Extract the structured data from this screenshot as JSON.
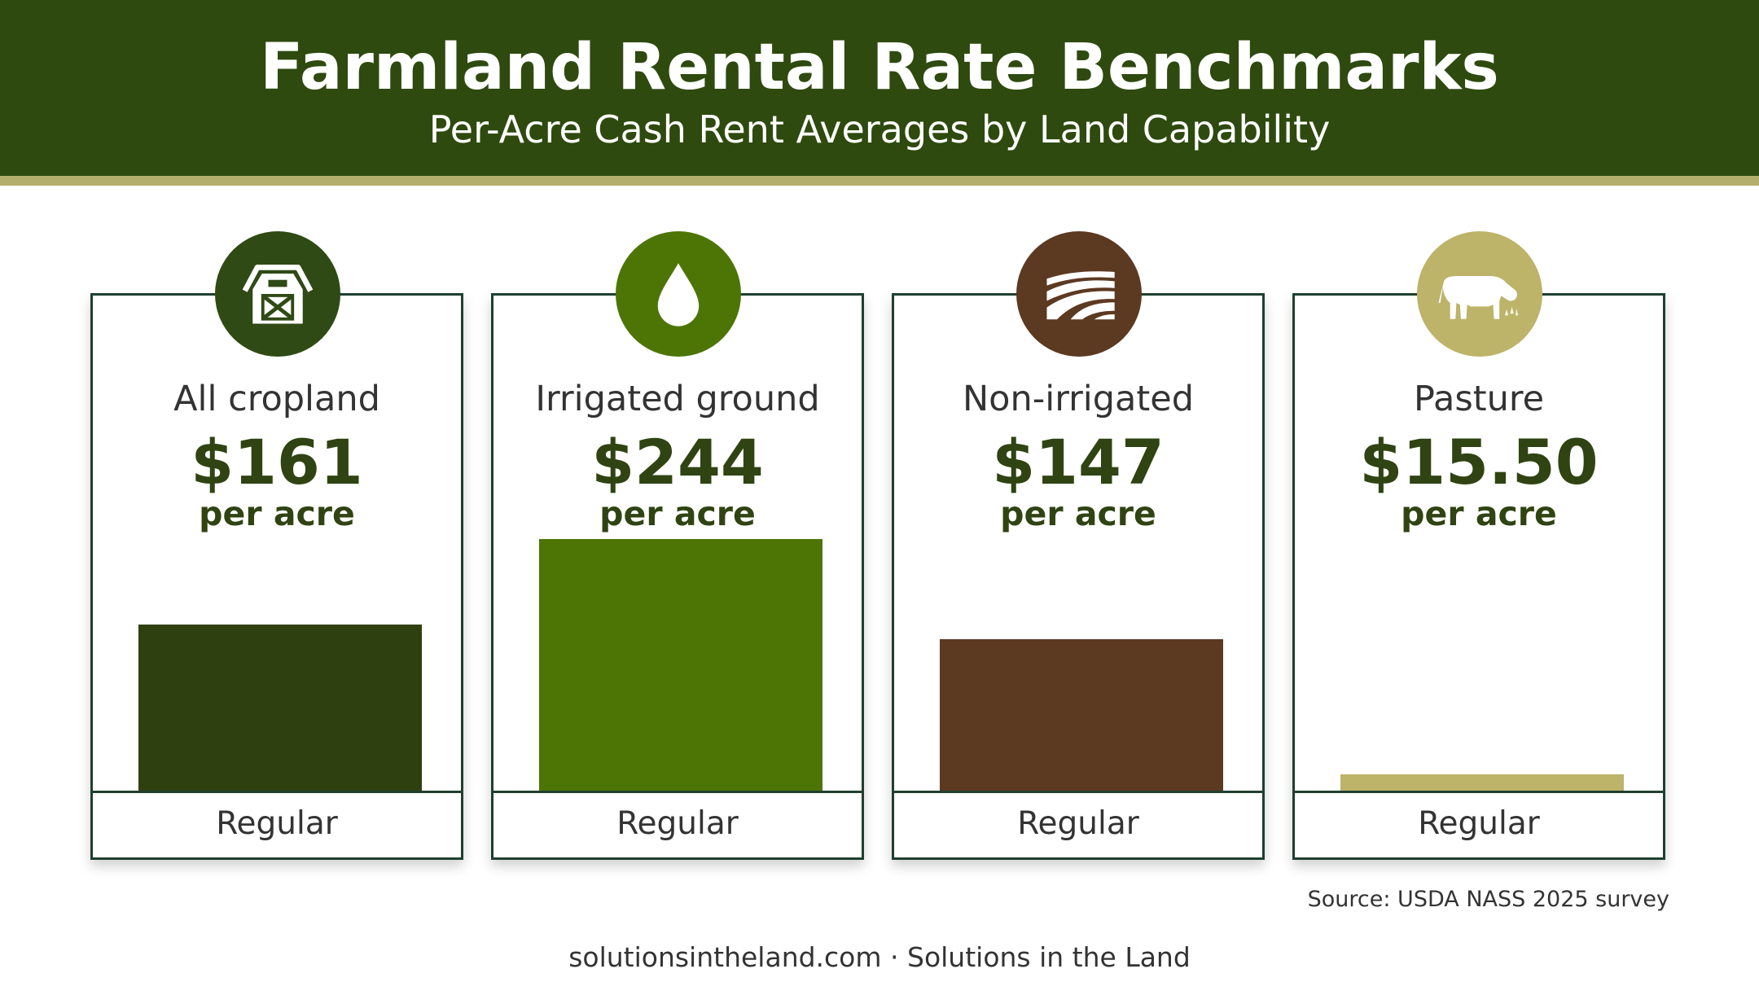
{
  "header": {
    "title": "Farmland Rental Rate Benchmarks",
    "subtitle": "Per-Acre Cash Rent Averages by Land Capability"
  },
  "cards": [
    {
      "label": "All cropland",
      "value_text": "$161",
      "unit": "per acre",
      "footer": "Regular",
      "icon": "barn-icon",
      "color": "#2f4010",
      "icon_bg": "#2f4a14"
    },
    {
      "label": "Irrigated ground",
      "value_text": "$244",
      "unit": "per acre",
      "footer": "Regular",
      "icon": "water-drop-icon",
      "color": "#4d7506",
      "icon_bg": "#4d7506"
    },
    {
      "label": "Non-irrigated",
      "value_text": "$147",
      "unit": "per acre",
      "footer": "Regular",
      "icon": "field-rows-icon",
      "color": "#5c3921",
      "icon_bg": "#5c3921"
    },
    {
      "label": "Pasture",
      "value_text": "$15.50",
      "unit": "per acre",
      "footer": "Regular",
      "icon": "cow-icon",
      "color": "#bdb369",
      "icon_bg": "#bdb369"
    }
  ],
  "chart_data": {
    "type": "bar",
    "categories": [
      "All cropland",
      "Irrigated ground",
      "Non-irrigated",
      "Pasture"
    ],
    "values": [
      161,
      244,
      147,
      15.5
    ],
    "unit": "per acre",
    "ylim": [
      0,
      244
    ],
    "colors": [
      "#2f4010",
      "#4d7506",
      "#5c3921",
      "#bdb369"
    ]
  },
  "source": "Source: USDA NASS 2025 survey",
  "footer": "solutionsintheland.com · Solutions in the Land"
}
